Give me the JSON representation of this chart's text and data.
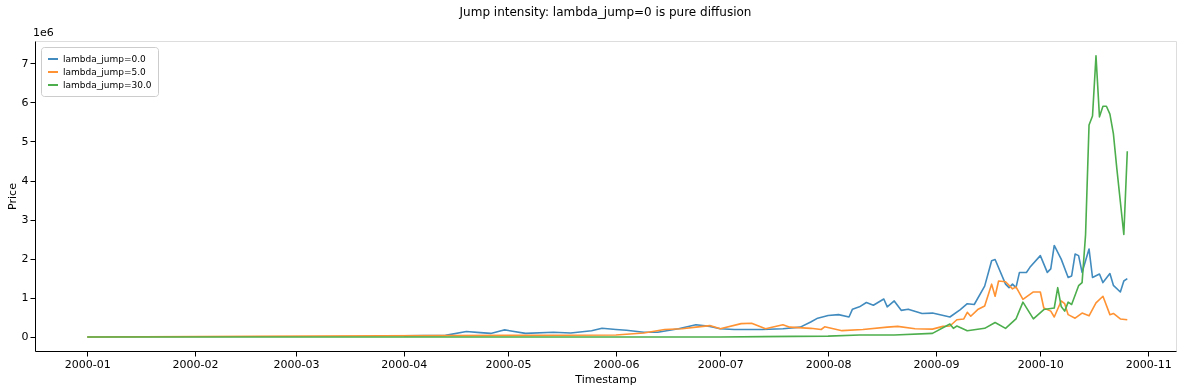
{
  "chart_data": {
    "type": "line",
    "title": "Jump intensity: lambda_jump=0 is pure diffusion",
    "xlabel": "Timestamp",
    "ylabel": "Price",
    "annotations": [
      "1e6"
    ],
    "xlim": [
      "1999-12-17",
      "2000-11-09"
    ],
    "xticks": [
      "2000-01",
      "2000-02",
      "2000-03",
      "2000-04",
      "2000-05",
      "2000-06",
      "2000-07",
      "2000-08",
      "2000-09",
      "2000-10",
      "2000-11"
    ],
    "ylim": [
      -0.36,
      7.57
    ],
    "yticks": [
      0,
      1,
      2,
      3,
      4,
      5,
      6,
      7
    ],
    "grid": false,
    "legend": "top left",
    "marker": "none",
    "line_style": "solid",
    "series": [
      {
        "name": "lambda_jump=0.0",
        "color": "#418bbf",
        "x": [
          "2000-04-01",
          "2000-04-13",
          "2000-04-19",
          "2000-04-23",
          "2000-04-26",
          "2000-04-29",
          "2000-04-30",
          "2000-05-06",
          "2000-05-14",
          "2000-05-19",
          "2000-05-25",
          "2000-05-28",
          "2000-06-01",
          "2000-06-04",
          "2000-06-09",
          "2000-06-13",
          "2000-06-19",
          "2000-06-24",
          "2000-06-28",
          "2000-07-01",
          "2000-07-05",
          "2000-07-13",
          "2000-07-19",
          "2000-07-24",
          "2000-07-27",
          "2000-07-29",
          "2000-08-01",
          "2000-08-04",
          "2000-08-07",
          "2000-08-08",
          "2000-08-10",
          "2000-08-12",
          "2000-08-14",
          "2000-08-17",
          "2000-08-18",
          "2000-08-20",
          "2000-08-22",
          "2000-08-24",
          "2000-08-28",
          "2000-08-31",
          "2000-09-05",
          "2000-09-08",
          "2000-09-10",
          "2000-09-12",
          "2000-09-15",
          "2000-09-17",
          "2000-09-18",
          "2000-09-21",
          "2000-09-22",
          "2000-09-23",
          "2000-09-24",
          "2000-09-25",
          "2000-09-27",
          "2000-09-28",
          "2000-10-01",
          "2000-10-03",
          "2000-10-04",
          "2000-10-05",
          "2000-10-07",
          "2000-10-09",
          "2000-10-10",
          "2000-10-11",
          "2000-10-12",
          "2000-10-13",
          "2000-10-15",
          "2000-10-16",
          "2000-10-18",
          "2000-10-19",
          "2000-10-21",
          "2000-10-22",
          "2000-10-24",
          "2000-10-25",
          "2000-10-26"
        ],
        "values": [
          0.03,
          0.04,
          0.14,
          0.11,
          0.09,
          0.16,
          0.18,
          0.09,
          0.12,
          0.1,
          0.16,
          0.22,
          0.19,
          0.17,
          0.12,
          0.12,
          0.21,
          0.31,
          0.27,
          0.21,
          0.19,
          0.19,
          0.21,
          0.25,
          0.38,
          0.48,
          0.55,
          0.57,
          0.51,
          0.71,
          0.77,
          0.88,
          0.81,
          0.97,
          0.77,
          0.92,
          0.68,
          0.71,
          0.6,
          0.61,
          0.51,
          0.7,
          0.85,
          0.83,
          1.3,
          1.95,
          1.98,
          1.35,
          1.26,
          1.35,
          1.26,
          1.65,
          1.65,
          1.78,
          2.08,
          1.65,
          1.74,
          2.34,
          1.99,
          1.52,
          1.56,
          2.12,
          2.08,
          1.65,
          2.25,
          1.52,
          1.61,
          1.39,
          1.62,
          1.32,
          1.15,
          1.43,
          1.49
        ]
      },
      {
        "name": "lambda_jump=5.0",
        "color": "#ff9232",
        "x": [
          "2000-01-01",
          "2000-06-01",
          "2000-06-09",
          "2000-06-15",
          "2000-06-20",
          "2000-06-24",
          "2000-06-28",
          "2000-07-01",
          "2000-07-07",
          "2000-07-10",
          "2000-07-14",
          "2000-07-19",
          "2000-07-21",
          "2000-07-27",
          "2000-07-30",
          "2000-07-31",
          "2000-08-05",
          "2000-08-11",
          "2000-08-18",
          "2000-08-21",
          "2000-08-26",
          "2000-08-31",
          "2000-09-03",
          "2000-09-05",
          "2000-09-07",
          "2000-09-09",
          "2000-09-10",
          "2000-09-11",
          "2000-09-13",
          "2000-09-15",
          "2000-09-17",
          "2000-09-18",
          "2000-09-19",
          "2000-09-21",
          "2000-09-23",
          "2000-09-24",
          "2000-09-26",
          "2000-09-29",
          "2000-10-01",
          "2000-10-02",
          "2000-10-04",
          "2000-10-05",
          "2000-10-07",
          "2000-10-08",
          "2000-10-09",
          "2000-10-11",
          "2000-10-13",
          "2000-10-15",
          "2000-10-17",
          "2000-10-19",
          "2000-10-21",
          "2000-10-22",
          "2000-10-24",
          "2000-10-26"
        ],
        "values": [
          0,
          0.05,
          0.1,
          0.19,
          0.21,
          0.25,
          0.29,
          0.21,
          0.34,
          0.35,
          0.21,
          0.31,
          0.25,
          0.22,
          0.19,
          0.26,
          0.16,
          0.19,
          0.25,
          0.27,
          0.21,
          0.2,
          0.27,
          0.28,
          0.44,
          0.46,
          0.63,
          0.53,
          0.7,
          0.79,
          1.35,
          1.04,
          1.43,
          1.41,
          1.23,
          1.28,
          0.96,
          1.15,
          1.15,
          0.74,
          0.66,
          0.51,
          0.92,
          0.85,
          0.57,
          0.48,
          0.61,
          0.54,
          0.87,
          1.04,
          0.57,
          0.6,
          0.46,
          0.44
        ]
      },
      {
        "name": "lambda_jump=30.0",
        "color": "#4cae4c",
        "x": [
          "2000-01-01",
          "2000-07-01",
          "2000-08-01",
          "2000-08-10",
          "2000-08-20",
          "2000-08-31",
          "2000-09-05",
          "2000-09-06",
          "2000-09-07",
          "2000-09-10",
          "2000-09-15",
          "2000-09-18",
          "2000-09-21",
          "2000-09-24",
          "2000-09-26",
          "2000-09-29",
          "2000-10-02",
          "2000-10-05",
          "2000-10-06",
          "2000-10-07",
          "2000-10-08",
          "2000-10-09",
          "2000-10-10",
          "2000-10-12",
          "2000-10-13",
          "2000-10-14",
          "2000-10-15",
          "2000-10-16",
          "2000-10-17",
          "2000-10-18",
          "2000-10-19",
          "2000-10-20",
          "2000-10-21",
          "2000-10-22",
          "2000-10-23",
          "2000-10-25",
          "2000-10-26"
        ],
        "values": [
          0,
          0,
          0.02,
          0.05,
          0.05,
          0.09,
          0.33,
          0.22,
          0.28,
          0.16,
          0.22,
          0.37,
          0.22,
          0.46,
          0.89,
          0.46,
          0.7,
          0.74,
          1.26,
          0.78,
          0.66,
          0.89,
          0.83,
          1.31,
          1.39,
          2.61,
          5.42,
          5.65,
          7.19,
          5.63,
          5.9,
          5.9,
          5.7,
          5.2,
          4.3,
          2.62,
          4.75
        ]
      }
    ]
  }
}
